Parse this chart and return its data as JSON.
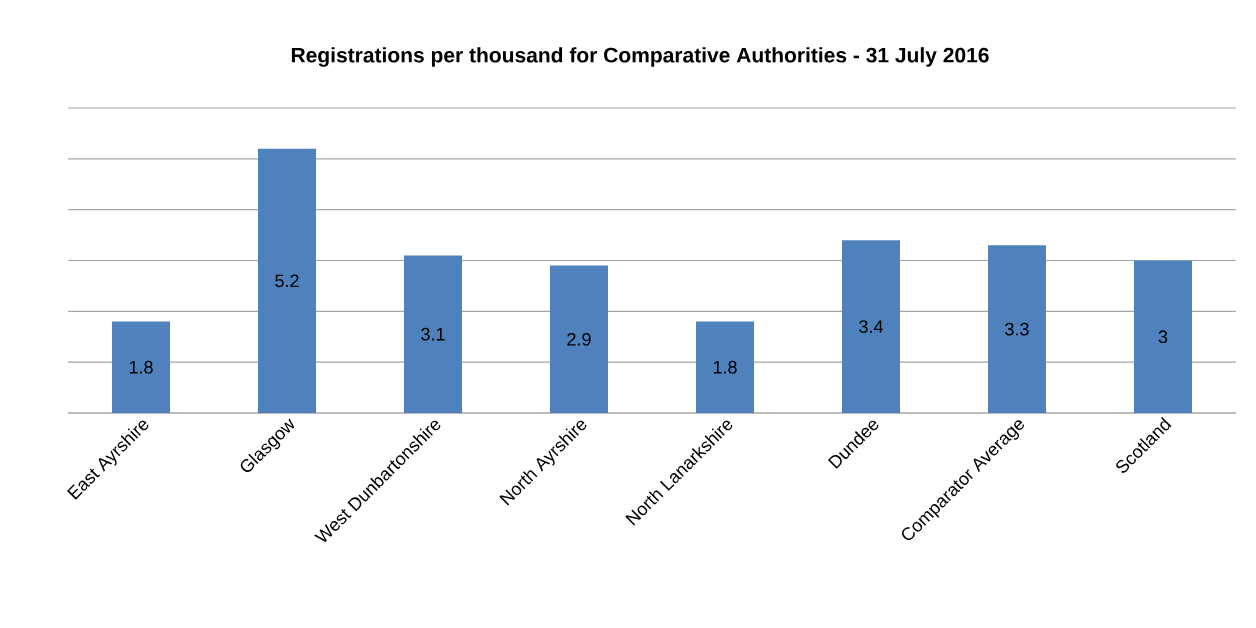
{
  "chart_data": {
    "type": "bar",
    "title": "Registrations per thousand for Comparative Authorities - 31 July 2016",
    "categories": [
      "East Ayrshire",
      "Glasgow",
      "West Dunbartonshire",
      "North Ayrshire",
      "North Lanarkshire",
      "Dundee",
      "Comparator Average",
      "Scotland"
    ],
    "values": [
      1.8,
      5.2,
      3.1,
      2.9,
      1.8,
      3.4,
      3.3,
      3
    ],
    "color": "#4f81bd",
    "ylim": [
      0,
      6
    ],
    "yticks": [
      {
        "value": 0,
        "label": null
      },
      {
        "value": 1,
        "label": null
      },
      {
        "value": 2,
        "label": null
      },
      {
        "value": 3,
        "label": null
      },
      {
        "value": 4,
        "label": null
      },
      {
        "value": 5,
        "label": null
      },
      {
        "value": 6,
        "label": null
      }
    ],
    "grid": "y",
    "tick_labels": "x",
    "data_labels": true
  }
}
